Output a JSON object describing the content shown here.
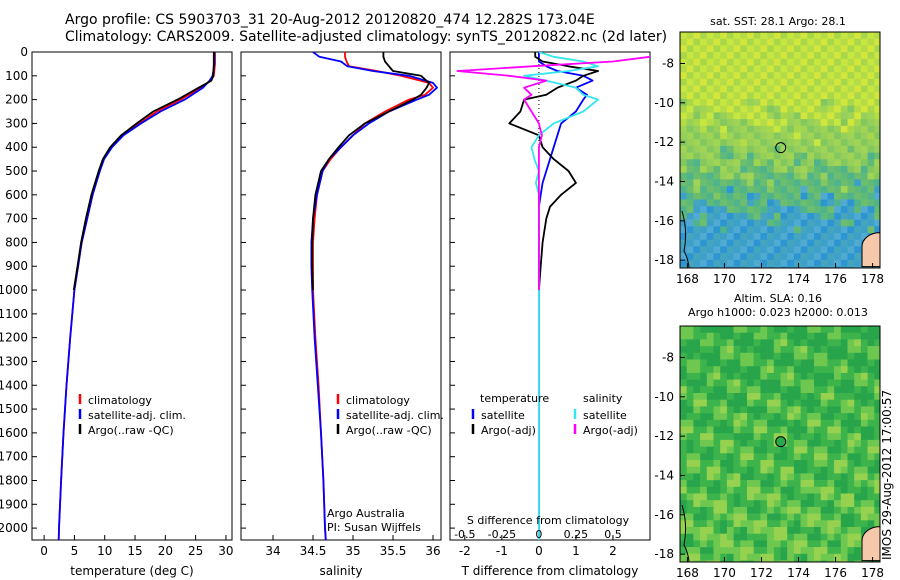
{
  "header": {
    "line1": "Argo profile: CS 5903703_31 20-Aug-2012 20120820_474 12.282S 173.04E",
    "line2": "Climatology: CARS2009. Satellite-adjusted climatology: synTS_20120822.nc (2d later)"
  },
  "stamp": "IMOS 29-Aug-2012 17:00:57",
  "credit": {
    "line1": "Argo Australia",
    "line2": "PI: Susan Wijffels"
  },
  "colors": {
    "climatology": "#ff0000",
    "satellite": "#0000ff",
    "argo": "#000000",
    "salinity_satellite": "#33e6f0",
    "salinity_argo": "#ff00ff"
  },
  "chart_data": [
    {
      "type": "line",
      "panel": "temperature",
      "xlabel": "temperature (deg C)",
      "xticks": [
        0,
        5,
        10,
        15,
        20,
        25,
        30
      ],
      "xlim": [
        -2,
        31
      ],
      "ylim": [
        2050,
        0
      ],
      "yticks": [
        0,
        100,
        200,
        300,
        400,
        500,
        600,
        700,
        800,
        900,
        1000,
        1100,
        1200,
        1300,
        1400,
        1500,
        1600,
        1700,
        1800,
        1900,
        2000
      ],
      "depth": [
        0,
        50,
        100,
        120,
        150,
        200,
        250,
        300,
        350,
        400,
        450,
        500,
        600,
        700,
        800,
        900,
        1000,
        1200,
        1400,
        1600,
        1800,
        2000,
        2050
      ],
      "legend": [
        "climatology",
        "satellite-adj. clim.",
        "Argo(..raw -QC)"
      ],
      "series": [
        {
          "name": "climatology",
          "color": "red",
          "values": [
            28.2,
            28.2,
            28.0,
            27.5,
            25.8,
            22.5,
            18.6,
            15.8,
            13.0,
            11.0,
            9.8,
            9.1,
            8.0,
            7.1,
            6.2,
            5.6,
            5.0,
            4.3,
            3.7,
            3.2,
            2.8,
            2.45,
            2.4
          ]
        },
        {
          "name": "satellite-adj. clim.",
          "color": "blue",
          "values": [
            28.1,
            28.1,
            27.8,
            27.3,
            26.2,
            23.2,
            19.2,
            16.0,
            13.1,
            11.2,
            9.9,
            9.2,
            8.0,
            7.1,
            6.2,
            5.6,
            5.0,
            4.3,
            3.7,
            3.2,
            2.8,
            2.45,
            2.4
          ]
        },
        {
          "name": "Argo(..raw -QC)",
          "color": "black",
          "values": [
            28.0,
            28.0,
            27.9,
            27.6,
            25.5,
            22.0,
            18.0,
            15.3,
            12.7,
            10.9,
            9.7,
            9.0,
            7.8,
            6.9,
            6.1,
            5.5,
            4.9,
            null,
            null,
            null,
            null,
            null,
            null
          ]
        }
      ]
    },
    {
      "type": "line",
      "panel": "salinity",
      "xlabel": "salinity",
      "xticks": [
        34,
        34.5,
        35,
        35.5,
        36
      ],
      "xlim": [
        33.6,
        36.1
      ],
      "ylim": [
        2050,
        0
      ],
      "depth": [
        0,
        20,
        40,
        60,
        80,
        100,
        130,
        150,
        180,
        200,
        250,
        300,
        350,
        400,
        450,
        500,
        600,
        700,
        800,
        900,
        1000,
        1200,
        1400,
        1600,
        1800,
        2000,
        2050
      ],
      "legend": [
        "climatology",
        "satellite-adj. clim.",
        "Argo(..raw -QC)"
      ],
      "series": [
        {
          "name": "climatology",
          "color": "red",
          "values": [
            34.9,
            34.9,
            34.92,
            34.95,
            35.3,
            35.6,
            35.95,
            36.0,
            35.9,
            35.7,
            35.4,
            35.15,
            35.0,
            34.85,
            34.72,
            34.62,
            34.55,
            34.52,
            34.5,
            34.5,
            34.5,
            34.53,
            34.57,
            34.6,
            34.63,
            34.65,
            34.66
          ]
        },
        {
          "name": "satellite-adj. clim.",
          "color": "blue",
          "values": [
            34.5,
            34.58,
            34.85,
            34.93,
            35.25,
            35.7,
            36.0,
            36.05,
            35.95,
            35.8,
            35.45,
            35.2,
            35.0,
            34.85,
            34.7,
            34.62,
            34.55,
            34.5,
            34.48,
            34.48,
            34.49,
            34.52,
            34.56,
            34.6,
            34.63,
            34.65,
            34.66
          ]
        },
        {
          "name": "Argo(..raw -QC)",
          "color": "black",
          "values": [
            35.38,
            35.38,
            35.4,
            35.45,
            35.5,
            35.85,
            35.95,
            35.92,
            35.85,
            35.75,
            35.45,
            35.15,
            34.95,
            34.82,
            34.7,
            34.6,
            34.53,
            34.5,
            34.49,
            34.49,
            34.5,
            null,
            null,
            null,
            null,
            null,
            null
          ]
        }
      ]
    },
    {
      "type": "line",
      "panel": "difference",
      "xlabel_bottom": "T difference from climatology",
      "xticks_bottom": [
        -2,
        -1,
        0,
        1,
        2
      ],
      "xlim_bottom": [
        -2.4,
        3.0
      ],
      "xlabel_top": "S difference from climatology",
      "xticks_top": [
        -0.5,
        -0.25,
        0,
        0.25,
        0.5
      ],
      "ylim": [
        2050,
        0
      ],
      "depth": [
        0,
        20,
        40,
        60,
        80,
        100,
        120,
        150,
        180,
        200,
        250,
        300,
        350,
        400,
        450,
        500,
        550,
        600,
        650,
        700,
        800,
        900,
        1000,
        1200,
        1400,
        1600,
        1800,
        2000,
        2050
      ],
      "legend_temperature": [
        "temperature",
        "satellite",
        "Argo(-adj)"
      ],
      "legend_salinity": [
        "salinity",
        "satellite",
        "Argo(-adj)"
      ],
      "series": [
        {
          "name": "satellite",
          "group": "temperature",
          "color": "blue",
          "values": [
            0.0,
            0.0,
            0.0,
            0.2,
            0.5,
            1.2,
            1.45,
            1.0,
            1.3,
            1.2,
            1.0,
            0.6,
            0.5,
            0.4,
            0.3,
            0.2,
            0.1,
            0.05,
            0.0,
            0.0,
            0.0,
            0.0,
            0.0,
            0.0,
            0.0,
            0.0,
            0.0,
            0.0,
            0.0
          ]
        },
        {
          "name": "Argo(-adj)",
          "group": "temperature",
          "color": "black",
          "values": [
            -0.1,
            -0.1,
            0.1,
            0.8,
            1.6,
            1.2,
            1.0,
            0.5,
            0.2,
            -0.4,
            -0.5,
            -0.8,
            0.0,
            0.1,
            0.4,
            0.8,
            1.0,
            0.6,
            0.3,
            0.2,
            0.1,
            0.05,
            0.0,
            null,
            null,
            null,
            null,
            null,
            null
          ]
        },
        {
          "name": "satellite",
          "group": "salinity",
          "color": "cyan",
          "values": [
            0.0,
            0.1,
            0.3,
            0.4,
            0.2,
            -0.1,
            0.05,
            0.25,
            0.3,
            0.4,
            0.3,
            0.1,
            0.0,
            -0.05,
            -0.03,
            0.0,
            -0.02,
            0.0,
            0.0,
            0.0,
            0.0,
            0.0,
            0.0,
            0.0,
            0.0,
            0.0,
            0.0,
            0.0,
            0.0
          ]
        },
        {
          "name": "Argo(-adj)",
          "group": "salinity",
          "color": "magenta",
          "values": [
            0.8,
            0.75,
            0.5,
            -0.05,
            -0.55,
            -0.2,
            0.05,
            -0.1,
            -0.05,
            -0.1,
            -0.05,
            0.0,
            0.02,
            0.0,
            0.0,
            0.0,
            0.0,
            0.0,
            0.0,
            0.0,
            0.0,
            0.0,
            0.0,
            null,
            null,
            null,
            null,
            null,
            null
          ]
        }
      ]
    },
    {
      "type": "heatmap",
      "panel": "sst-map",
      "title": "sat. SST: 28.1  Argo: 28.1",
      "xticks": [
        168,
        170,
        172,
        174,
        176,
        178
      ],
      "xlim": [
        167.6,
        178.4
      ],
      "yticks": [
        -8,
        -10,
        -12,
        -14,
        -16,
        -18
      ],
      "ylim": [
        -18.4,
        -6.4
      ],
      "marker": {
        "lon": 173.04,
        "lat": -12.28
      }
    },
    {
      "type": "heatmap",
      "panel": "sla-map",
      "title_line1": "Altim. SLA: 0.16",
      "title_line2": "Argo h1000: 0.023  h2000: 0.013",
      "xticks": [
        168,
        170,
        172,
        174,
        176,
        178
      ],
      "xlim": [
        167.6,
        178.4
      ],
      "yticks": [
        -8,
        -10,
        -12,
        -14,
        -16,
        -18
      ],
      "ylim": [
        -18.4,
        -6.4
      ],
      "marker": {
        "lon": 173.04,
        "lat": -12.28
      }
    }
  ]
}
